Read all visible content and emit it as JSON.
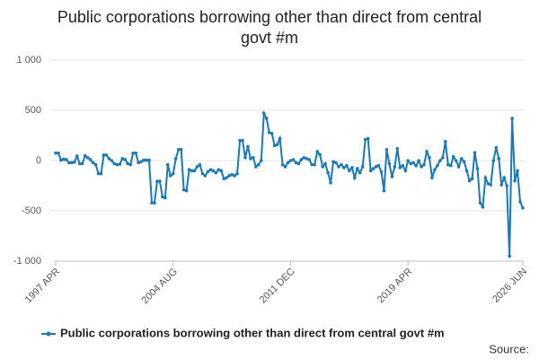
{
  "chart_data": {
    "type": "line",
    "title": "Public corporations borrowing other than direct from central govt #m",
    "source": "Source:",
    "categories": [
      "1997 APR",
      null,
      null,
      null,
      null,
      null,
      null,
      null,
      null,
      null,
      null,
      null,
      null,
      null,
      null,
      null,
      null,
      null,
      null,
      null,
      null,
      null,
      null,
      null,
      null,
      null,
      null,
      null,
      null,
      null,
      null,
      null,
      null,
      null,
      null,
      null,
      null,
      null,
      null,
      null,
      null,
      null,
      null,
      null,
      "2004 AUG",
      null,
      null,
      null,
      null,
      null,
      null,
      null,
      null,
      null,
      null,
      null,
      null,
      null,
      null,
      null,
      null,
      null,
      null,
      null,
      null,
      null,
      null,
      null,
      null,
      null,
      null,
      null,
      null,
      null,
      null,
      null,
      null,
      null,
      null,
      null,
      null,
      null,
      null,
      null,
      null,
      null,
      null,
      null,
      "2011 DEC",
      null,
      null,
      null,
      null,
      null,
      null,
      null,
      null,
      null,
      null,
      null,
      null,
      null,
      null,
      null,
      null,
      null,
      null,
      null,
      null,
      null,
      null,
      null,
      null,
      null,
      null,
      null,
      null,
      null,
      null,
      null,
      null,
      null,
      null,
      null,
      null,
      null,
      null,
      null,
      null,
      null,
      null,
      null,
      "2019 APR",
      null,
      null,
      null,
      null,
      null,
      null,
      null,
      null,
      null,
      null,
      null,
      null,
      null,
      null,
      null,
      null,
      null,
      null,
      null,
      null,
      null,
      null,
      null,
      null,
      null,
      null,
      null,
      null,
      null,
      null,
      null,
      null,
      null,
      null,
      null,
      null,
      null,
      null,
      null,
      null,
      null,
      null,
      "2026 JUN"
    ],
    "series": [
      {
        "name": "Public corporations borrowing other than direct from central govt #m",
        "color": "#1a7ab5",
        "values": [
          75,
          75,
          5,
          15,
          10,
          -20,
          -20,
          -15,
          45,
          -30,
          -30,
          50,
          30,
          10,
          -20,
          -40,
          -130,
          -130,
          55,
          55,
          20,
          0,
          -30,
          -40,
          -35,
          20,
          10,
          -30,
          -40,
          75,
          75,
          -20,
          -10,
          5,
          5,
          5,
          -420,
          -420,
          -205,
          -205,
          -360,
          -370,
          -40,
          -150,
          -130,
          20,
          110,
          110,
          -290,
          -300,
          -90,
          -100,
          -100,
          -60,
          -40,
          -130,
          -150,
          -110,
          -90,
          -100,
          -120,
          -90,
          -100,
          -180,
          -170,
          -150,
          -140,
          -150,
          -130,
          200,
          200,
          30,
          140,
          20,
          30,
          -60,
          -40,
          0,
          470,
          420,
          280,
          270,
          150,
          160,
          220,
          -40,
          -60,
          -20,
          0,
          10,
          -20,
          -30,
          10,
          30,
          20,
          10,
          -40,
          -40,
          90,
          60,
          -60,
          -30,
          -120,
          -220,
          -10,
          -20,
          -60,
          -40,
          -70,
          -50,
          -100,
          -70,
          -170,
          -80,
          -120,
          -60,
          210,
          220,
          -100,
          -80,
          -60,
          -50,
          -110,
          -300,
          110,
          -30,
          -160,
          -60,
          120,
          -70,
          -50,
          -100,
          0,
          -30,
          -20,
          -50,
          0,
          -60,
          -40,
          90,
          30,
          -170,
          -90,
          -50,
          0,
          30,
          190,
          -40,
          -50,
          40,
          0,
          -60,
          20,
          -10,
          -100,
          -200,
          -180,
          80,
          -80,
          -420,
          -460,
          -170,
          -230,
          -240,
          0,
          130,
          20,
          -240,
          -170,
          -250,
          -950,
          420,
          -200,
          -100,
          -410,
          -470
        ]
      }
    ],
    "ylim": [
      -1000,
      1000
    ],
    "yticks": [
      {
        "value": -1000,
        "label": "-1 000"
      },
      -500,
      0,
      500,
      {
        "value": 1000,
        "label": "1 000"
      }
    ],
    "grid": true,
    "legend": "bottom"
  }
}
